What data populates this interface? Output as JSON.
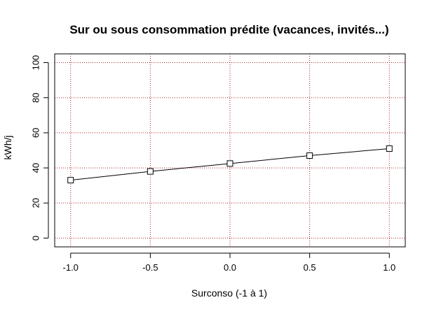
{
  "chart_data": {
    "type": "line",
    "title": "Sur ou sous consommation prédite (vacances, invités...)",
    "xlabel": "Surconso (-1 à 1)",
    "ylabel": "kWh/j",
    "x": [
      -1.0,
      -0.5,
      0.0,
      0.5,
      1.0
    ],
    "series": [
      {
        "values": [
          33,
          38,
          42.5,
          47,
          51
        ],
        "marker": "square",
        "color": "#000000"
      }
    ],
    "xlim": [
      -1.1,
      1.1
    ],
    "ylim": [
      -5,
      105
    ],
    "xticks": [
      -1.0,
      -0.5,
      0.0,
      0.5,
      1.0
    ],
    "xtick_labels": [
      "-1.0",
      "-0.5",
      "0.0",
      "0.5",
      "1.0"
    ],
    "yticks": [
      0,
      20,
      40,
      60,
      80,
      100
    ],
    "ytick_labels": [
      "0",
      "20",
      "40",
      "60",
      "80",
      "100"
    ],
    "grid": true,
    "grid_color": "#b22222",
    "grid_style": "dotted",
    "vertical_gridlines": [
      -1.0,
      -0.5,
      0.0,
      0.5,
      1.0
    ],
    "horizontal_gridlines": [
      0,
      20,
      40,
      60,
      80,
      100
    ],
    "background": "#ffffff"
  }
}
